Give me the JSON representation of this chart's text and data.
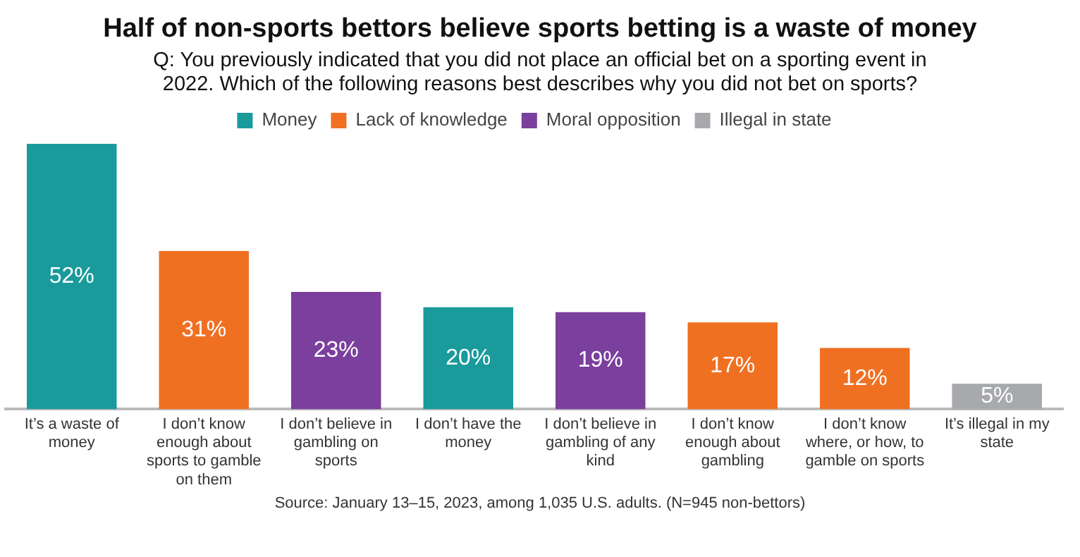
{
  "chart_data": {
    "type": "bar",
    "title": "Half of non-sports bettors believe sports betting is a waste of money",
    "subtitle": "Q: You previously indicated that you did not place an official bet on a sporting event in 2022. Which of the following reasons best describes why you did not bet on sports?",
    "categories": [
      "It’s a waste of money",
      "I don’t know enough about sports to gamble on them",
      "I don’t believe in gambling on sports",
      "I don’t have the money",
      "I don’t believe in gambling of any kind",
      "I don’t know enough about gambling",
      "I don’t know where, or how, to gamble on sports",
      "It’s illegal in my state"
    ],
    "series": [
      {
        "name": "Money",
        "color": "#1a9a9b",
        "values": [
          52,
          null,
          null,
          20,
          null,
          null,
          null,
          null
        ],
        "value_labels": [
          "52%",
          null,
          null,
          "20%",
          null,
          null,
          null,
          null
        ]
      },
      {
        "name": "Lack of knowledge",
        "color": "#f07022",
        "values": [
          null,
          31,
          null,
          null,
          null,
          17,
          12,
          null
        ],
        "value_labels": [
          null,
          "31%",
          null,
          null,
          null,
          "17%",
          "12%",
          null
        ]
      },
      {
        "name": "Moral opposition",
        "color": "#7b3f9e",
        "values": [
          null,
          null,
          23,
          null,
          19,
          null,
          null,
          null
        ],
        "value_labels": [
          null,
          null,
          "23%",
          null,
          "19%",
          null,
          null,
          null
        ]
      },
      {
        "name": "Illegal in state",
        "color": "#a7a9ac",
        "values": [
          null,
          null,
          null,
          null,
          null,
          null,
          null,
          5
        ],
        "value_labels": [
          null,
          null,
          null,
          null,
          null,
          null,
          null,
          "5%"
        ]
      }
    ],
    "legend": "top",
    "grid": false,
    "tick_labels": "x",
    "annotations": [
      "Source: January 13–15, 2023, among 1,035 U.S. adults. (N=945 non-bettors)"
    ]
  }
}
